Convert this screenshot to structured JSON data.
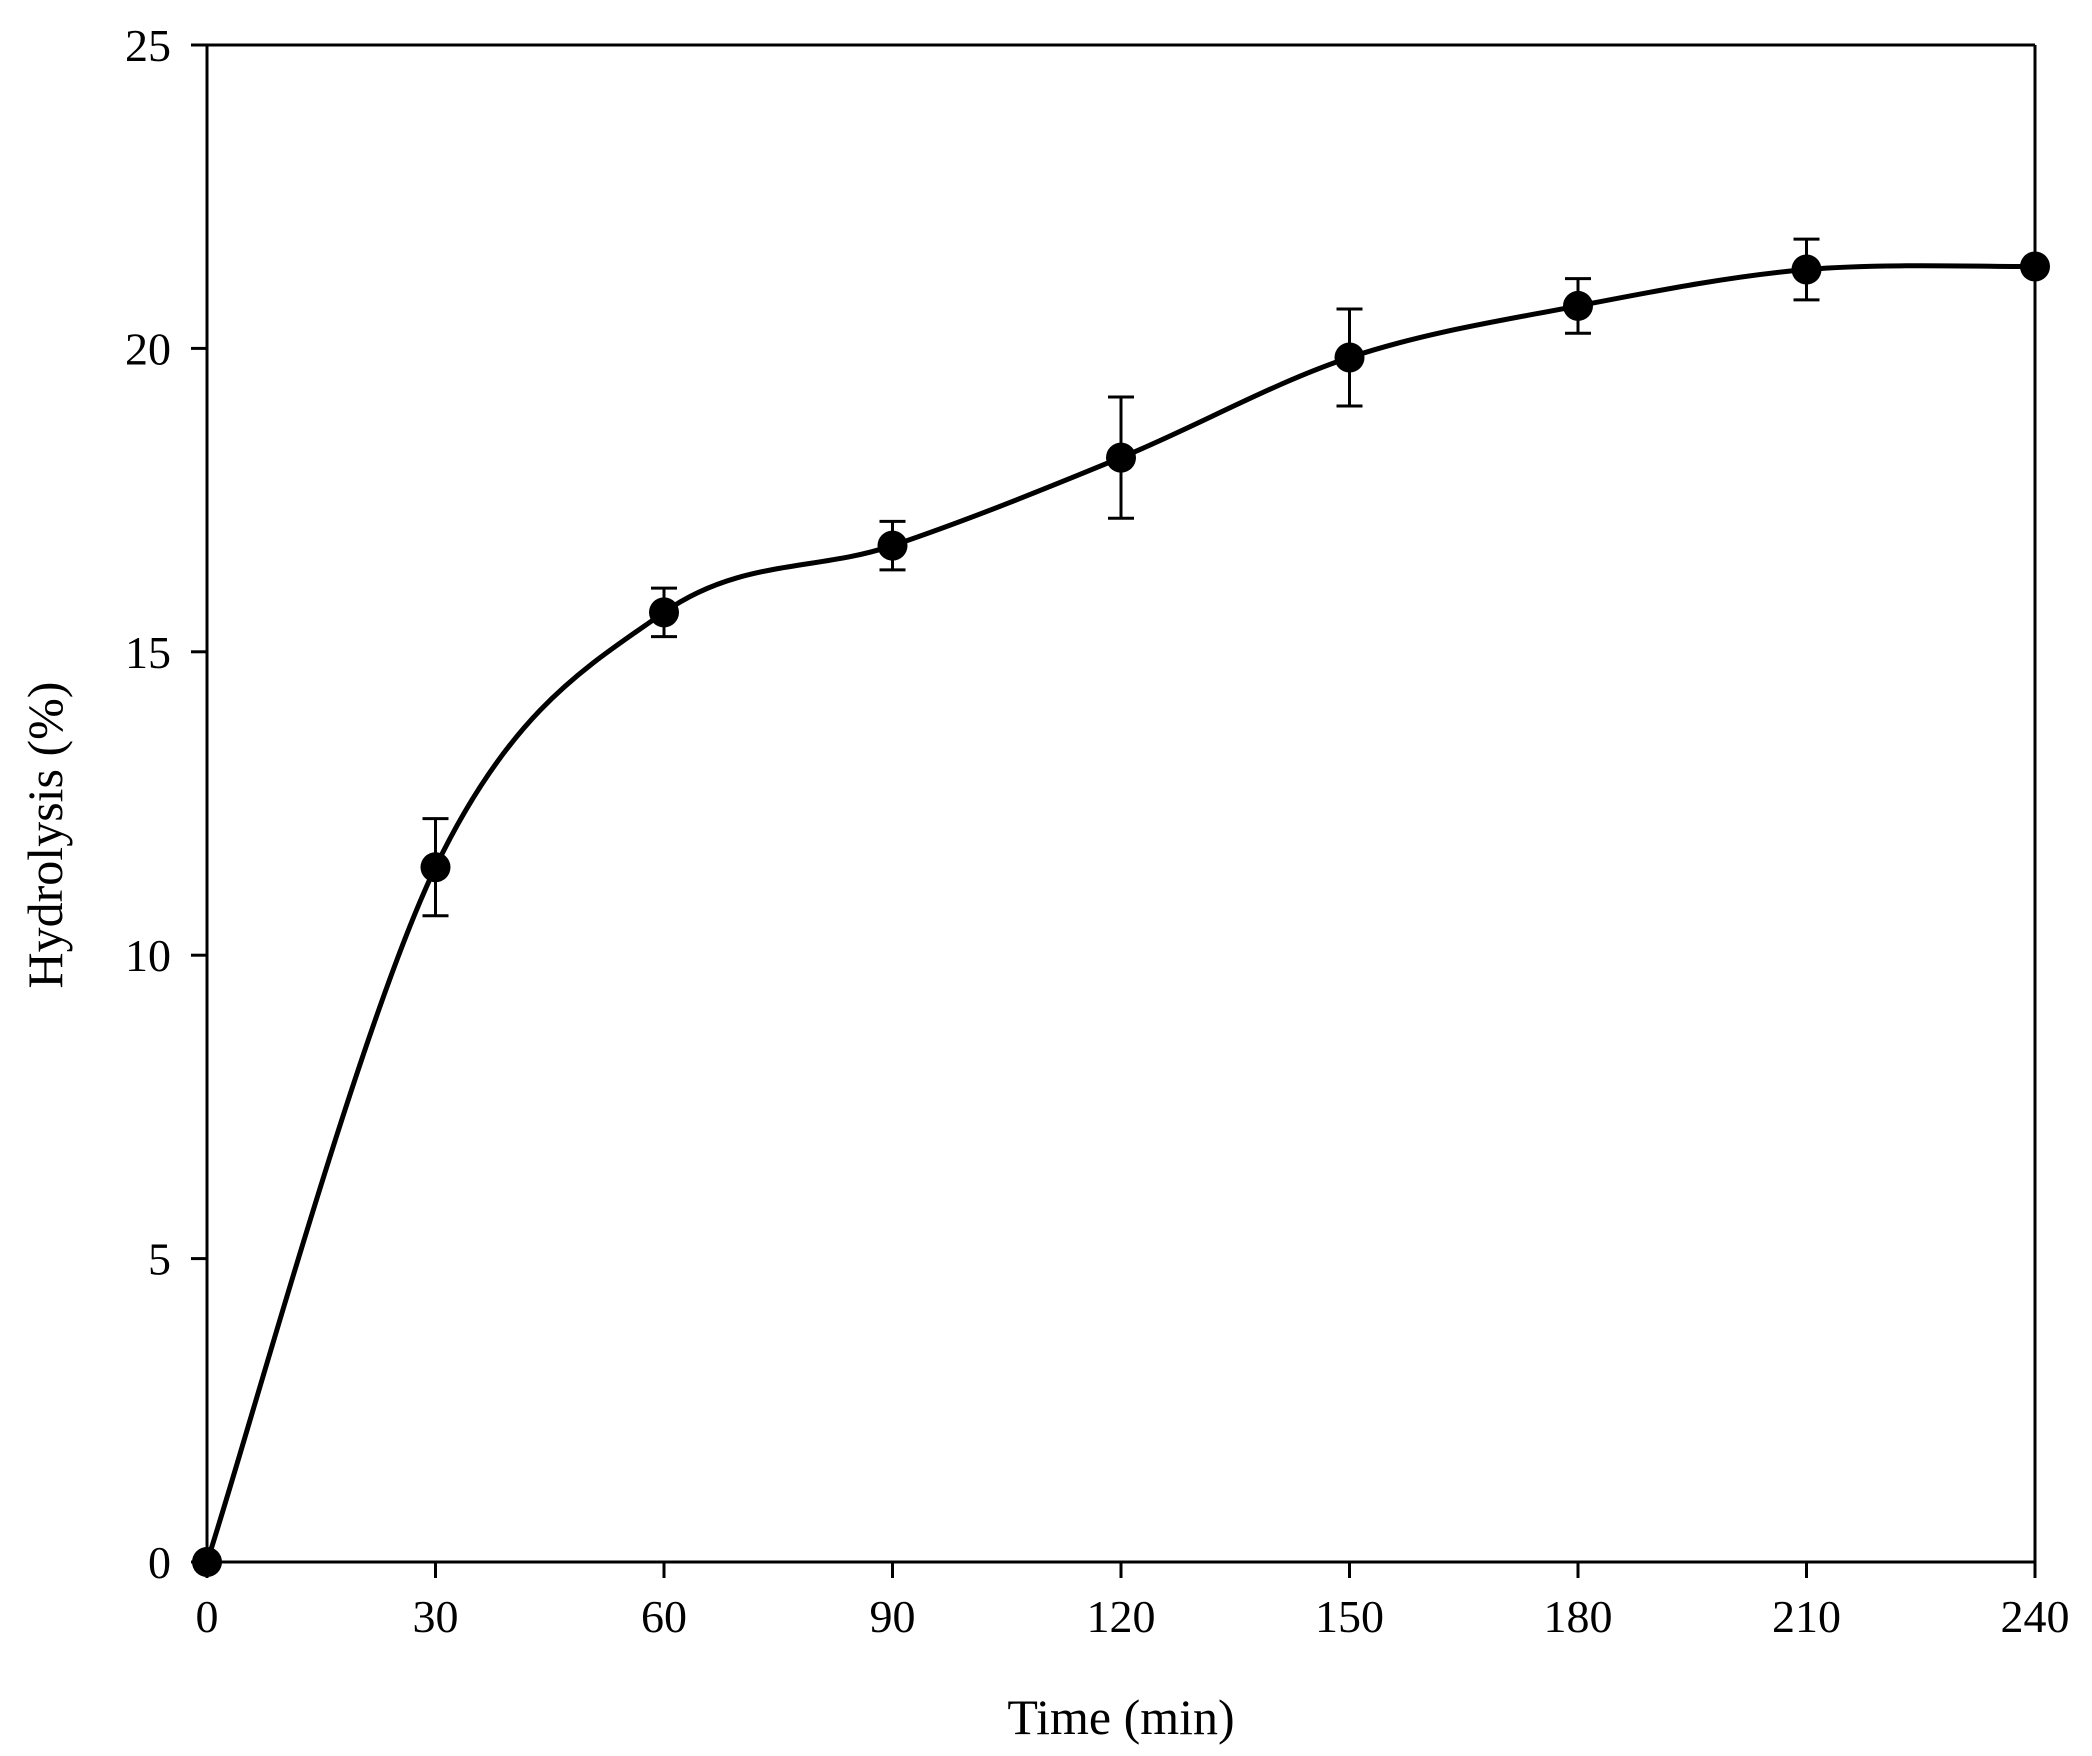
{
  "chart_data": {
    "type": "line",
    "title": "",
    "xlabel": "Time (min)",
    "ylabel": "Hydrolysis (%)",
    "xlim": [
      0,
      240
    ],
    "ylim": [
      0,
      25
    ],
    "xticks": [
      0,
      30,
      60,
      90,
      120,
      150,
      180,
      210,
      240
    ],
    "yticks": [
      0,
      5,
      10,
      15,
      20,
      25
    ],
    "grid": false,
    "legend": "none",
    "series": [
      {
        "x": [
          0,
          30,
          60,
          90,
          120,
          150,
          180,
          210,
          240
        ],
        "y": [
          0,
          11.45,
          15.65,
          16.75,
          18.2,
          19.85,
          20.7,
          21.3,
          21.35
        ],
        "error": [
          0,
          0.8,
          0.4,
          0.4,
          1.0,
          0.8,
          0.45,
          0.5,
          0
        ],
        "color": "#000000",
        "marker": "filled-circle",
        "line": "smooth"
      }
    ]
  }
}
